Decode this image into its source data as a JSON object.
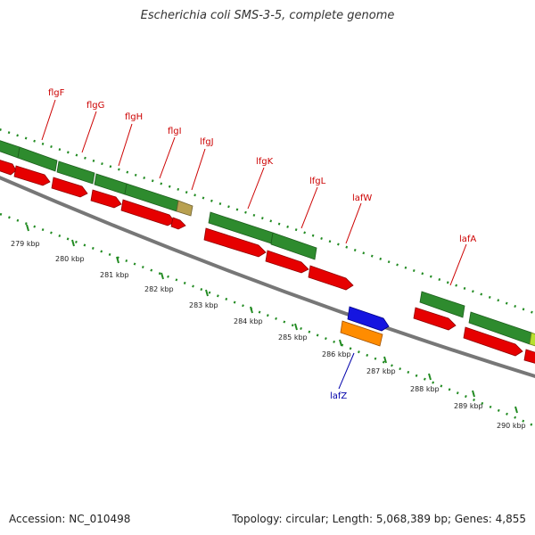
{
  "title": "Escherichia coli SMS-3-5, complete genome",
  "footer": {
    "accession": "Accession: NC_010498",
    "summary": "Topology: circular; Length: 5,068,389 bp; Genes: 4,855"
  },
  "colors": {
    "forward_cds": "#2e8b2e",
    "reverse_cds": "#e00000",
    "other_feature": "#ff8c00",
    "selected_feature": "#1010e0",
    "backbone": "#777777",
    "tick": "#228b22",
    "red_label": "#cc0000",
    "blue_label": "#0000aa"
  },
  "ticks": [
    "279 kbp",
    "280 kbp",
    "281 kbp",
    "282 kbp",
    "283 kbp",
    "284 kbp",
    "285 kbp",
    "286 kbp",
    "287 kbp",
    "288 kbp",
    "289 kbp",
    "290 kbp"
  ],
  "gene_labels": [
    {
      "text": "flgF",
      "color": "red"
    },
    {
      "text": "flgG",
      "color": "red"
    },
    {
      "text": "flgH",
      "color": "red"
    },
    {
      "text": "flgI",
      "color": "red"
    },
    {
      "text": "lfgJ",
      "color": "red"
    },
    {
      "text": "lfgK",
      "color": "red"
    },
    {
      "text": "lfgL",
      "color": "red"
    },
    {
      "text": "lafW",
      "color": "red"
    },
    {
      "text": "lafA",
      "color": "red"
    },
    {
      "text": "lafZ",
      "color": "blue"
    }
  ]
}
